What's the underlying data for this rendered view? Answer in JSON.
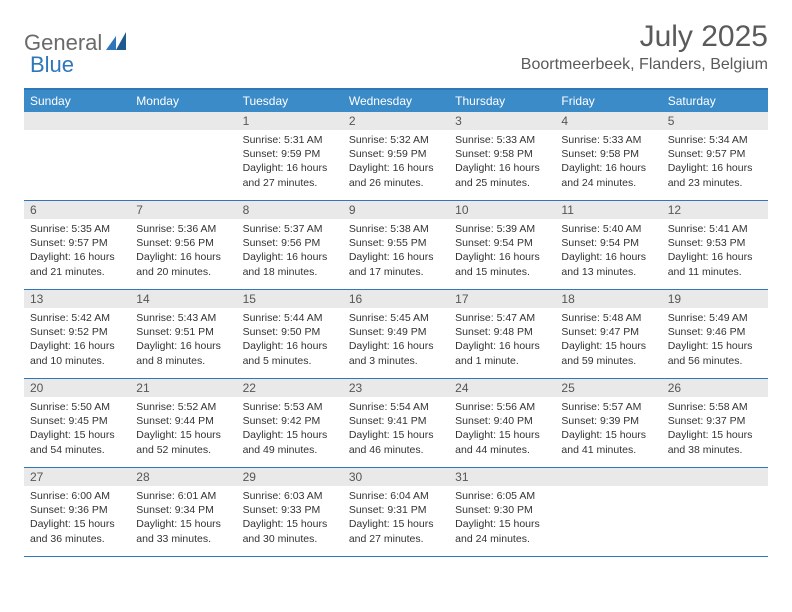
{
  "logo": {
    "part1": "General",
    "part2": "Blue"
  },
  "title": "July 2025",
  "location": "Boortmeerbeek, Flanders, Belgium",
  "colors": {
    "header_bg": "#3b8bc9",
    "border": "#2f77b9",
    "daynum_bg": "#e9e9e9",
    "text_muted": "#5a5a5a",
    "text": "#333333"
  },
  "weekdays": [
    "Sunday",
    "Monday",
    "Tuesday",
    "Wednesday",
    "Thursday",
    "Friday",
    "Saturday"
  ],
  "weeks": [
    [
      {
        "n": "",
        "sunrise": "",
        "sunset": "",
        "daylight": ""
      },
      {
        "n": "",
        "sunrise": "",
        "sunset": "",
        "daylight": ""
      },
      {
        "n": "1",
        "sunrise": "Sunrise: 5:31 AM",
        "sunset": "Sunset: 9:59 PM",
        "daylight": "Daylight: 16 hours and 27 minutes."
      },
      {
        "n": "2",
        "sunrise": "Sunrise: 5:32 AM",
        "sunset": "Sunset: 9:59 PM",
        "daylight": "Daylight: 16 hours and 26 minutes."
      },
      {
        "n": "3",
        "sunrise": "Sunrise: 5:33 AM",
        "sunset": "Sunset: 9:58 PM",
        "daylight": "Daylight: 16 hours and 25 minutes."
      },
      {
        "n": "4",
        "sunrise": "Sunrise: 5:33 AM",
        "sunset": "Sunset: 9:58 PM",
        "daylight": "Daylight: 16 hours and 24 minutes."
      },
      {
        "n": "5",
        "sunrise": "Sunrise: 5:34 AM",
        "sunset": "Sunset: 9:57 PM",
        "daylight": "Daylight: 16 hours and 23 minutes."
      }
    ],
    [
      {
        "n": "6",
        "sunrise": "Sunrise: 5:35 AM",
        "sunset": "Sunset: 9:57 PM",
        "daylight": "Daylight: 16 hours and 21 minutes."
      },
      {
        "n": "7",
        "sunrise": "Sunrise: 5:36 AM",
        "sunset": "Sunset: 9:56 PM",
        "daylight": "Daylight: 16 hours and 20 minutes."
      },
      {
        "n": "8",
        "sunrise": "Sunrise: 5:37 AM",
        "sunset": "Sunset: 9:56 PM",
        "daylight": "Daylight: 16 hours and 18 minutes."
      },
      {
        "n": "9",
        "sunrise": "Sunrise: 5:38 AM",
        "sunset": "Sunset: 9:55 PM",
        "daylight": "Daylight: 16 hours and 17 minutes."
      },
      {
        "n": "10",
        "sunrise": "Sunrise: 5:39 AM",
        "sunset": "Sunset: 9:54 PM",
        "daylight": "Daylight: 16 hours and 15 minutes."
      },
      {
        "n": "11",
        "sunrise": "Sunrise: 5:40 AM",
        "sunset": "Sunset: 9:54 PM",
        "daylight": "Daylight: 16 hours and 13 minutes."
      },
      {
        "n": "12",
        "sunrise": "Sunrise: 5:41 AM",
        "sunset": "Sunset: 9:53 PM",
        "daylight": "Daylight: 16 hours and 11 minutes."
      }
    ],
    [
      {
        "n": "13",
        "sunrise": "Sunrise: 5:42 AM",
        "sunset": "Sunset: 9:52 PM",
        "daylight": "Daylight: 16 hours and 10 minutes."
      },
      {
        "n": "14",
        "sunrise": "Sunrise: 5:43 AM",
        "sunset": "Sunset: 9:51 PM",
        "daylight": "Daylight: 16 hours and 8 minutes."
      },
      {
        "n": "15",
        "sunrise": "Sunrise: 5:44 AM",
        "sunset": "Sunset: 9:50 PM",
        "daylight": "Daylight: 16 hours and 5 minutes."
      },
      {
        "n": "16",
        "sunrise": "Sunrise: 5:45 AM",
        "sunset": "Sunset: 9:49 PM",
        "daylight": "Daylight: 16 hours and 3 minutes."
      },
      {
        "n": "17",
        "sunrise": "Sunrise: 5:47 AM",
        "sunset": "Sunset: 9:48 PM",
        "daylight": "Daylight: 16 hours and 1 minute."
      },
      {
        "n": "18",
        "sunrise": "Sunrise: 5:48 AM",
        "sunset": "Sunset: 9:47 PM",
        "daylight": "Daylight: 15 hours and 59 minutes."
      },
      {
        "n": "19",
        "sunrise": "Sunrise: 5:49 AM",
        "sunset": "Sunset: 9:46 PM",
        "daylight": "Daylight: 15 hours and 56 minutes."
      }
    ],
    [
      {
        "n": "20",
        "sunrise": "Sunrise: 5:50 AM",
        "sunset": "Sunset: 9:45 PM",
        "daylight": "Daylight: 15 hours and 54 minutes."
      },
      {
        "n": "21",
        "sunrise": "Sunrise: 5:52 AM",
        "sunset": "Sunset: 9:44 PM",
        "daylight": "Daylight: 15 hours and 52 minutes."
      },
      {
        "n": "22",
        "sunrise": "Sunrise: 5:53 AM",
        "sunset": "Sunset: 9:42 PM",
        "daylight": "Daylight: 15 hours and 49 minutes."
      },
      {
        "n": "23",
        "sunrise": "Sunrise: 5:54 AM",
        "sunset": "Sunset: 9:41 PM",
        "daylight": "Daylight: 15 hours and 46 minutes."
      },
      {
        "n": "24",
        "sunrise": "Sunrise: 5:56 AM",
        "sunset": "Sunset: 9:40 PM",
        "daylight": "Daylight: 15 hours and 44 minutes."
      },
      {
        "n": "25",
        "sunrise": "Sunrise: 5:57 AM",
        "sunset": "Sunset: 9:39 PM",
        "daylight": "Daylight: 15 hours and 41 minutes."
      },
      {
        "n": "26",
        "sunrise": "Sunrise: 5:58 AM",
        "sunset": "Sunset: 9:37 PM",
        "daylight": "Daylight: 15 hours and 38 minutes."
      }
    ],
    [
      {
        "n": "27",
        "sunrise": "Sunrise: 6:00 AM",
        "sunset": "Sunset: 9:36 PM",
        "daylight": "Daylight: 15 hours and 36 minutes."
      },
      {
        "n": "28",
        "sunrise": "Sunrise: 6:01 AM",
        "sunset": "Sunset: 9:34 PM",
        "daylight": "Daylight: 15 hours and 33 minutes."
      },
      {
        "n": "29",
        "sunrise": "Sunrise: 6:03 AM",
        "sunset": "Sunset: 9:33 PM",
        "daylight": "Daylight: 15 hours and 30 minutes."
      },
      {
        "n": "30",
        "sunrise": "Sunrise: 6:04 AM",
        "sunset": "Sunset: 9:31 PM",
        "daylight": "Daylight: 15 hours and 27 minutes."
      },
      {
        "n": "31",
        "sunrise": "Sunrise: 6:05 AM",
        "sunset": "Sunset: 9:30 PM",
        "daylight": "Daylight: 15 hours and 24 minutes."
      },
      {
        "n": "",
        "sunrise": "",
        "sunset": "",
        "daylight": ""
      },
      {
        "n": "",
        "sunrise": "",
        "sunset": "",
        "daylight": ""
      }
    ]
  ]
}
